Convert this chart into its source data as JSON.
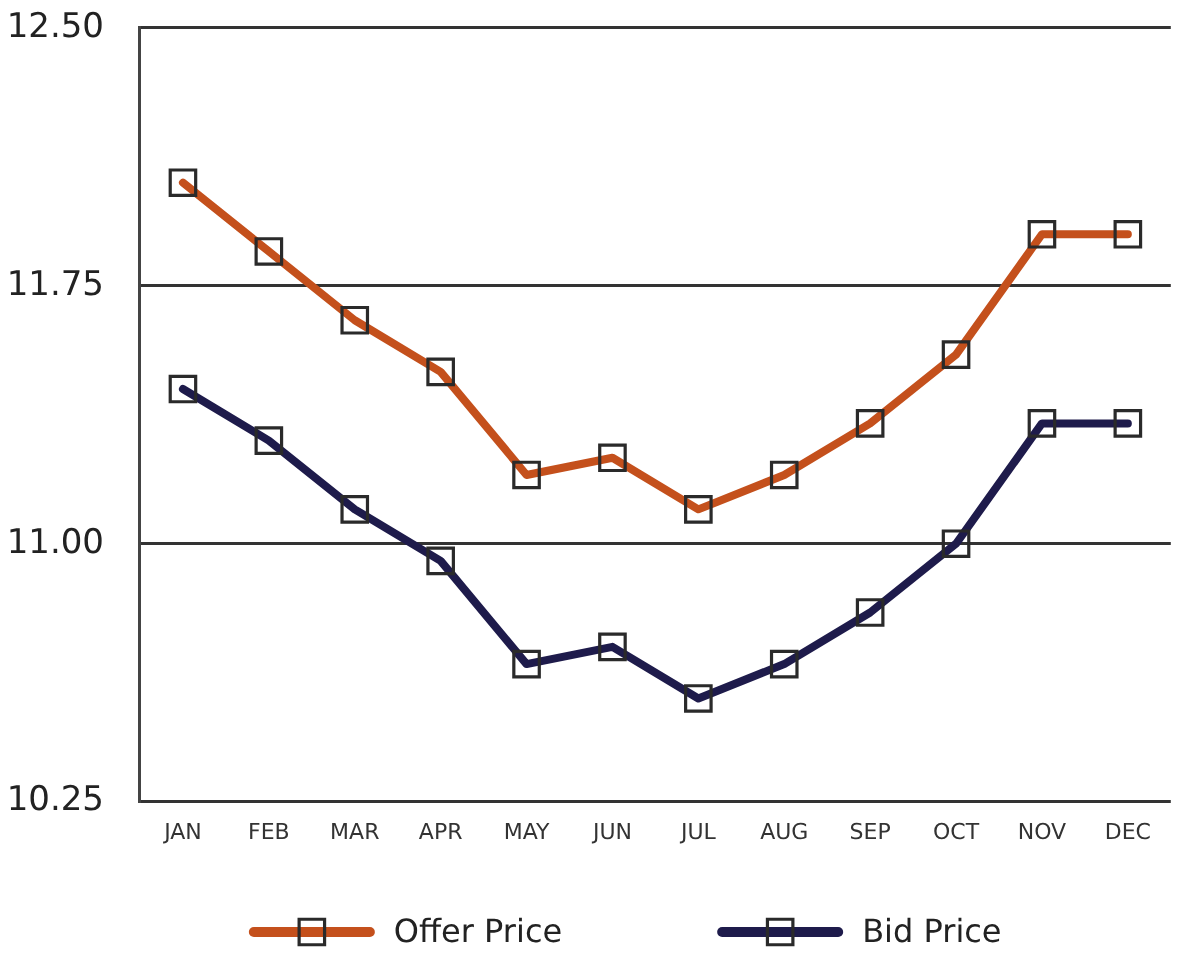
{
  "chart_data": {
    "type": "line",
    "categories": [
      "JAN",
      "FEB",
      "MAR",
      "APR",
      "MAY",
      "JUN",
      "JUL",
      "AUG",
      "SEP",
      "OCT",
      "NOV",
      "DEC"
    ],
    "series": [
      {
        "name": "Offer Price",
        "color": "#c4501c",
        "values": [
          12.05,
          11.85,
          11.65,
          11.5,
          11.2,
          11.25,
          11.1,
          11.2,
          11.35,
          11.55,
          11.9,
          11.9
        ]
      },
      {
        "name": "Bid Price",
        "color": "#1e1b4b",
        "values": [
          11.45,
          11.3,
          11.1,
          10.95,
          10.65,
          10.7,
          10.55,
          10.65,
          10.8,
          11.0,
          11.35,
          11.35
        ]
      }
    ],
    "ylim": [
      10.25,
      12.5
    ],
    "yticks": [
      10.25,
      {
        "value": 11,
        "label": "11.00"
      },
      11.75,
      {
        "value": 12.5,
        "label": "12.50"
      }
    ],
    "grid": "y",
    "legend": "bottom",
    "marker": "square",
    "line_style": "solid"
  }
}
